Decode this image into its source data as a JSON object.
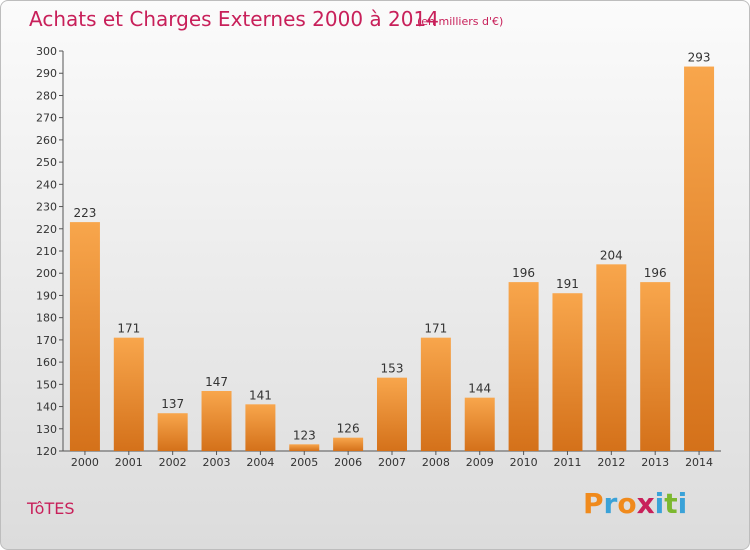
{
  "header": {
    "title": "Achats et Charges Externes 2000 à 2014",
    "unit": "(en milliers d'€)"
  },
  "footer": {
    "commune": "TôTES",
    "logo_letters": [
      "P",
      "r",
      "o",
      "x",
      "i",
      "t",
      "i"
    ],
    "logo_colors": [
      "#f08a1c",
      "#3aa2d8",
      "#f08a1c",
      "#c8205a",
      "#3aa2d8",
      "#7cb82f",
      "#3aa2d8"
    ]
  },
  "chart_data": {
    "type": "bar",
    "title": "Achats et Charges Externes 2000 à 2014",
    "categories": [
      "2000",
      "2001",
      "2002",
      "2003",
      "2004",
      "2005",
      "2006",
      "2007",
      "2008",
      "2009",
      "2010",
      "2011",
      "2012",
      "2013",
      "2014"
    ],
    "values": [
      223,
      171,
      137,
      147,
      141,
      123,
      126,
      153,
      171,
      144,
      196,
      191,
      204,
      196,
      293
    ],
    "ylim": [
      120,
      300
    ],
    "ytick_step": 10,
    "grid": false,
    "bar_color_top": "#f8a64c",
    "bar_color_bottom": "#d4711a"
  }
}
